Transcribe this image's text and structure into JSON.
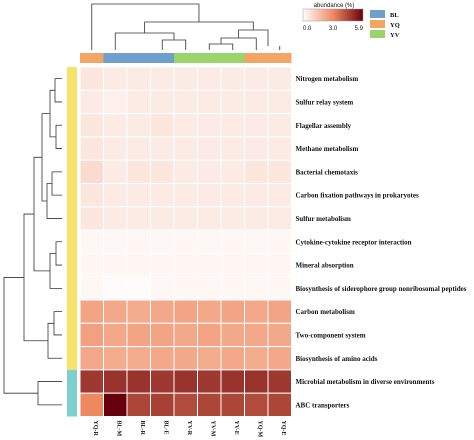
{
  "chart_data": {
    "type": "heatmap",
    "title": "",
    "columns": [
      "YQ-R",
      "BL-M",
      "BL-R",
      "BL-E",
      "YV-R",
      "YV-M",
      "YV-E",
      "YQ-M",
      "YQ-E"
    ],
    "column_groups": [
      "YQ",
      "BL",
      "BL",
      "BL",
      "YV",
      "YV",
      "YV",
      "YQ",
      "YQ"
    ],
    "rows": [
      "Nitrogen metabolism",
      "Sulfur relay system",
      "Flagellar assembly",
      "Methane metabolism",
      "Bacterial chemotaxis",
      "Carbon fixation pathways in prokaryotes",
      "Sulfur metabolism",
      "Cytokine-cytokine receptor interaction",
      "Mineral absorption",
      "Biosynthesis of siderophore group nonribosomal peptides",
      "Carbon metabolism",
      "Two-component system",
      "Biosynthesis of amino acids",
      "Microbial metabolism in diverse  environments",
      "ABC transporters"
    ],
    "row_clusters": [
      1,
      1,
      1,
      1,
      1,
      1,
      1,
      1,
      1,
      1,
      1,
      1,
      1,
      2,
      2
    ],
    "values": [
      [
        0.6,
        0.5,
        0.5,
        0.5,
        0.5,
        0.5,
        0.5,
        0.5,
        0.5
      ],
      [
        0.5,
        0.4,
        0.5,
        0.5,
        0.5,
        0.5,
        0.5,
        0.5,
        0.5
      ],
      [
        0.6,
        0.5,
        0.5,
        0.6,
        0.5,
        0.5,
        0.5,
        0.5,
        0.5
      ],
      [
        0.6,
        0.5,
        0.5,
        0.5,
        0.5,
        0.5,
        0.5,
        0.5,
        0.5
      ],
      [
        0.9,
        0.5,
        0.6,
        0.6,
        0.5,
        0.5,
        0.5,
        0.6,
        0.6
      ],
      [
        0.6,
        0.5,
        0.5,
        0.5,
        0.5,
        0.5,
        0.5,
        0.5,
        0.5
      ],
      [
        0.6,
        0.5,
        0.5,
        0.5,
        0.5,
        0.5,
        0.5,
        0.5,
        0.5
      ],
      [
        0.2,
        0.2,
        0.2,
        0.2,
        0.2,
        0.2,
        0.2,
        0.2,
        0.2
      ],
      [
        0.2,
        0.2,
        0.2,
        0.2,
        0.2,
        0.2,
        0.2,
        0.2,
        0.2
      ],
      [
        0.2,
        0.1,
        0.1,
        0.2,
        0.2,
        0.2,
        0.2,
        0.2,
        0.2
      ],
      [
        2.3,
        2.2,
        2.1,
        2.2,
        2.3,
        2.2,
        2.3,
        2.2,
        2.3
      ],
      [
        2.4,
        2.2,
        2.3,
        2.3,
        2.2,
        2.3,
        2.2,
        2.2,
        2.2
      ],
      [
        2.2,
        2.1,
        2.1,
        2.2,
        2.2,
        2.1,
        2.2,
        2.1,
        2.2
      ],
      [
        4.7,
        4.8,
        4.8,
        4.7,
        4.8,
        4.7,
        4.8,
        4.8,
        4.7
      ],
      [
        3.0,
        5.9,
        4.4,
        4.5,
        4.3,
        4.4,
        4.4,
        4.3,
        4.4
      ]
    ],
    "colorbar": {
      "title": "abundance (%)",
      "min": 0.0,
      "max": 5.9,
      "ticks": [
        "0.0",
        "3.0",
        "5.9"
      ],
      "colors": [
        "#ffffff",
        "#ef8a62",
        "#67000d"
      ]
    },
    "group_legend": [
      {
        "name": "BL",
        "color": "#6f9fcc"
      },
      {
        "name": "YQ",
        "color": "#f2a565"
      },
      {
        "name": "YV",
        "color": "#9bd46c"
      }
    ],
    "row_cluster_colors": {
      "1": "#f6e36b",
      "2": "#7fcfcf"
    }
  }
}
